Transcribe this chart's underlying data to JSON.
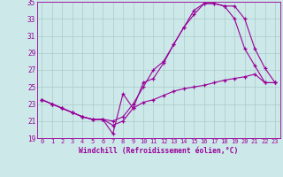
{
  "xlabel": "Windchill (Refroidissement éolien,°C)",
  "xlim": [
    -0.5,
    23.5
  ],
  "ylim": [
    19,
    35
  ],
  "xticks": [
    0,
    1,
    2,
    3,
    4,
    5,
    6,
    7,
    8,
    9,
    10,
    11,
    12,
    13,
    14,
    15,
    16,
    17,
    18,
    19,
    20,
    21,
    22,
    23
  ],
  "yticks": [
    19,
    21,
    23,
    25,
    27,
    29,
    31,
    33,
    35
  ],
  "background_color": "#cce8e8",
  "grid_color": "#aacccc",
  "line_color": "#990099",
  "line1_x": [
    0,
    1,
    2,
    3,
    4,
    5,
    6,
    7,
    8,
    9,
    10,
    11,
    12,
    13,
    14,
    15,
    16,
    17,
    18,
    19,
    20,
    21,
    22,
    23
  ],
  "line1_y": [
    23.5,
    23.0,
    22.5,
    22.0,
    21.5,
    21.2,
    21.2,
    19.5,
    24.2,
    22.5,
    25.5,
    26.0,
    27.8,
    30.0,
    32.0,
    33.5,
    34.8,
    34.8,
    34.5,
    34.5,
    33.0,
    29.5,
    27.2,
    25.5
  ],
  "line2_x": [
    0,
    1,
    2,
    3,
    4,
    5,
    6,
    7,
    8,
    9,
    10,
    11,
    12,
    13,
    14,
    15,
    16,
    17,
    18,
    19,
    20,
    21,
    22,
    23
  ],
  "line2_y": [
    23.5,
    23.0,
    22.5,
    22.0,
    21.5,
    21.2,
    21.2,
    21.0,
    21.5,
    23.0,
    25.0,
    27.0,
    28.0,
    30.0,
    32.0,
    34.0,
    34.8,
    34.8,
    34.5,
    33.0,
    29.5,
    27.5,
    25.5,
    25.5
  ],
  "line3_x": [
    0,
    1,
    2,
    3,
    4,
    5,
    6,
    7,
    8,
    9,
    10,
    11,
    12,
    13,
    14,
    15,
    16,
    17,
    18,
    19,
    20,
    21,
    22,
    23
  ],
  "line3_y": [
    23.5,
    23.0,
    22.5,
    22.0,
    21.5,
    21.2,
    21.2,
    20.5,
    21.0,
    22.5,
    23.2,
    23.5,
    24.0,
    24.5,
    24.8,
    25.0,
    25.2,
    25.5,
    25.8,
    26.0,
    26.2,
    26.5,
    25.5,
    25.5
  ]
}
